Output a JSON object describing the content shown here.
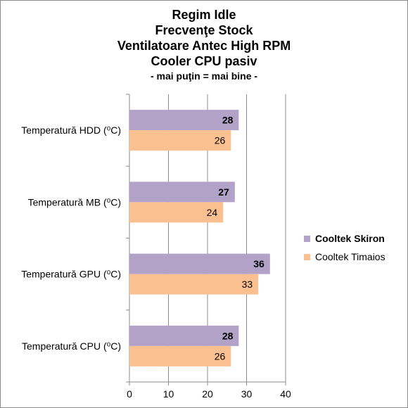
{
  "title_lines": [
    "Regim Idle",
    "Frecvenţe Stock",
    "Ventilatoare Antec High RPM",
    "Cooler CPU pasiv"
  ],
  "subtitle": "- mai puţin = mai bine -",
  "chart_data": {
    "type": "bar",
    "orientation": "horizontal",
    "categories": [
      "Temperatură  HDD (⁰C)",
      "Temperatură  MB (⁰C)",
      "Temperatură  GPU (⁰C)",
      "Temperatură  CPU (⁰C)"
    ],
    "series": [
      {
        "name": "Cooltek Skiron",
        "values": [
          28,
          27,
          36,
          28
        ],
        "color": "#b3a2c7",
        "bold_labels": true
      },
      {
        "name": "Cooltek Timaios",
        "values": [
          26,
          24,
          33,
          26
        ],
        "color": "#fac090",
        "bold_labels": false
      }
    ],
    "xlim": [
      0,
      40
    ],
    "xticks": [
      0,
      10,
      20,
      30,
      40
    ],
    "grid": true,
    "legend_position": "right"
  }
}
